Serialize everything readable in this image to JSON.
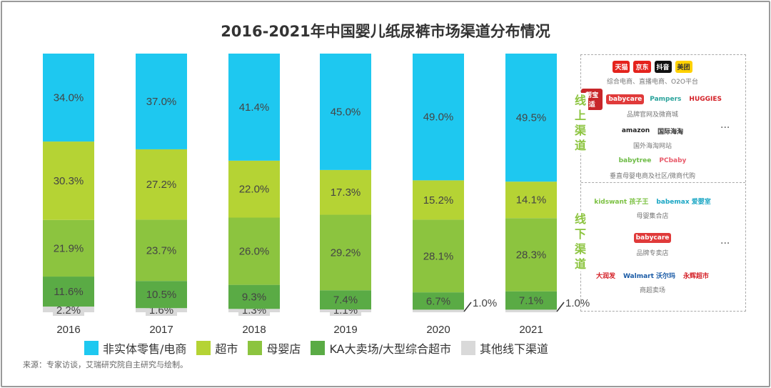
{
  "chart_data": {
    "type": "bar",
    "stacked": true,
    "title": "2016-2021年中国婴儿纸尿裤市场渠道分布情况",
    "categories": [
      "2016",
      "2017",
      "2018",
      "2019",
      "2020",
      "2021"
    ],
    "ylim": [
      0,
      100
    ],
    "unit": "%",
    "grid": false,
    "legend_placement": "bottom",
    "series": [
      {
        "name": "其他线下渠道",
        "color": "#d9d9d9",
        "values": [
          2.2,
          1.6,
          1.3,
          1.1,
          1.0,
          1.0
        ]
      },
      {
        "name": "KA大卖场/大型综合超市",
        "color": "#5aab45",
        "values": [
          11.6,
          10.5,
          9.3,
          7.4,
          6.7,
          7.1
        ]
      },
      {
        "name": "母婴店",
        "color": "#8cc43f",
        "values": [
          21.9,
          23.7,
          26.0,
          29.2,
          28.1,
          28.3
        ]
      },
      {
        "name": "超市",
        "color": "#b5d334",
        "values": [
          30.3,
          27.2,
          22.0,
          17.3,
          15.2,
          14.1
        ]
      },
      {
        "name": "非实体零售/电商",
        "color": "#1ec8f0",
        "values": [
          34.0,
          37.0,
          41.4,
          45.0,
          49.0,
          49.5
        ]
      }
    ],
    "legend_order": [
      4,
      3,
      2,
      1,
      0
    ]
  },
  "source": "来源：专家访谈，艾瑞研究院自主研究与绘制。",
  "panel": {
    "online_label": "线上渠道",
    "offline_label": "线下渠道",
    "more": "...",
    "online_groups": [
      {
        "caption": "综合电商、直播电商、O2O平台",
        "logos": [
          {
            "text": "天猫",
            "bg": "#e4231d",
            "fg": "#fff"
          },
          {
            "text": "京东",
            "bg": "#e4231d",
            "fg": "#fff"
          },
          {
            "text": "抖音",
            "bg": "#111",
            "fg": "#fff"
          },
          {
            "text": "美团",
            "bg": "#ffd100",
            "fg": "#333"
          }
        ]
      },
      {
        "caption": "品牌官网及微商城",
        "logos": [
          {
            "text": "帮宝适",
            "bg": "#c8262a",
            "fg": "#fff"
          },
          {
            "text": "babycare",
            "bg": "#e03a3a",
            "fg": "#fff"
          },
          {
            "text": "Pampers",
            "bg": "#fff",
            "fg": "#2aa39b"
          },
          {
            "text": "HUGGIES",
            "bg": "#fff",
            "fg": "#d42027"
          }
        ]
      },
      {
        "caption": "国外海淘网站",
        "logos": [
          {
            "text": "amazon",
            "bg": "#fff",
            "fg": "#222"
          },
          {
            "text": "国际海淘",
            "bg": "#fff",
            "fg": "#333"
          }
        ]
      },
      {
        "caption": "垂直母婴电商及社区/微商代购",
        "logos": [
          {
            "text": "babytree",
            "bg": "#fff",
            "fg": "#6dbb45"
          },
          {
            "text": "PCbaby",
            "bg": "#fff",
            "fg": "#e85a6a"
          }
        ]
      }
    ],
    "offline_groups": [
      {
        "caption": "母婴集合店",
        "logos": [
          {
            "text": "kidswant 孩子王",
            "bg": "#fff",
            "fg": "#7cc142"
          },
          {
            "text": "babemax 爱婴室",
            "bg": "#fff",
            "fg": "#1aa6c4"
          }
        ]
      },
      {
        "caption": "品牌专卖店",
        "logos": [
          {
            "text": "babycare",
            "bg": "#e03a3a",
            "fg": "#fff"
          }
        ]
      },
      {
        "caption": "商超卖场",
        "logos": [
          {
            "text": "大润发",
            "bg": "#fff",
            "fg": "#d42027"
          },
          {
            "text": "Walmart 沃尔玛",
            "bg": "#fff",
            "fg": "#1a5ba6"
          },
          {
            "text": "永辉超市",
            "bg": "#fff",
            "fg": "#d42027"
          }
        ]
      }
    ]
  }
}
